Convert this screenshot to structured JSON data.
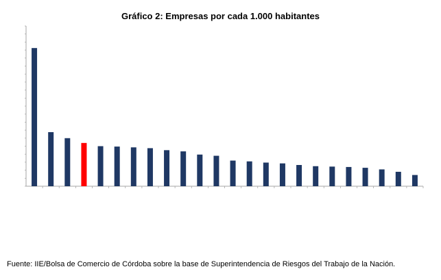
{
  "title": "Gráfico 2: Empresas por cada 1.000 habitantes",
  "source": "Fuente: IIE/Bolsa de Comercio de Córdoba sobre la base de Superintendencia de Riesgos del Trabajo de la Nación.",
  "colors": {
    "bar": "#1f3864",
    "highlight": "#ff0000",
    "axis": "#a6a6a6"
  },
  "chart_data": {
    "type": "bar",
    "title": "Gráfico 2: Empresas por cada 1.000 habitantes",
    "xlabel": "",
    "ylabel": "",
    "grid": false,
    "legend": "none",
    "ylim": [
      0,
      40
    ],
    "values": [
      34.5,
      13.5,
      12.0,
      10.8,
      10.0,
      9.9,
      9.7,
      9.5,
      9.0,
      8.7,
      7.9,
      7.6,
      6.4,
      6.2,
      5.9,
      5.7,
      5.3,
      5.0,
      4.9,
      4.8,
      4.6,
      4.2,
      3.6,
      2.8
    ],
    "highlight_index": 3
  }
}
